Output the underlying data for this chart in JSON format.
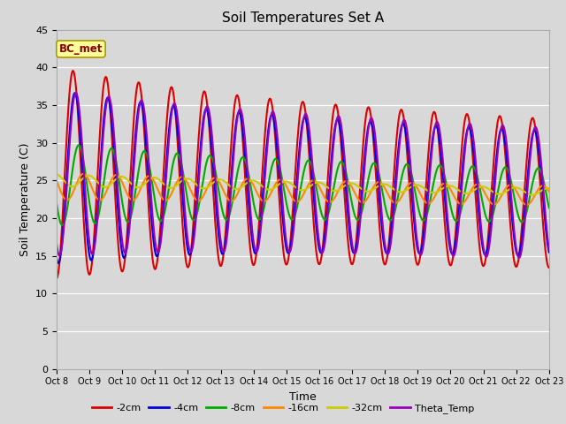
{
  "title": "Soil Temperatures Set A",
  "xlabel": "Time",
  "ylabel": "Soil Temperature (C)",
  "ylim": [
    0,
    45
  ],
  "yticks": [
    0,
    5,
    10,
    15,
    20,
    25,
    30,
    35,
    40,
    45
  ],
  "annotation": "BC_met",
  "annotation_color": "#8B0000",
  "annotation_bg": "#FFFF99",
  "fig_bg": "#D8D8D8",
  "plot_bg": "#D8D8D8",
  "series": [
    {
      "label": "-2cm",
      "color": "#DD0000",
      "lw": 1.5
    },
    {
      "label": "-4cm",
      "color": "#0000DD",
      "lw": 1.5
    },
    {
      "label": "-8cm",
      "color": "#00AA00",
      "lw": 1.5
    },
    {
      "label": "-16cm",
      "color": "#FF8800",
      "lw": 1.5
    },
    {
      "label": "-32cm",
      "color": "#CCCC00",
      "lw": 1.5
    },
    {
      "label": "Theta_Temp",
      "color": "#9900BB",
      "lw": 1.5
    }
  ],
  "x_tick_labels": [
    "Oct 8",
    "Oct 9",
    "Oct 10",
    "Oct 11",
    "Oct 12",
    "Oct 13",
    "Oct 14",
    "Oct 15",
    "Oct 16",
    "Oct 17",
    "Oct 18",
    "Oct 19",
    "Oct 20",
    "Oct 21",
    "Oct 22",
    "Oct 23"
  ]
}
